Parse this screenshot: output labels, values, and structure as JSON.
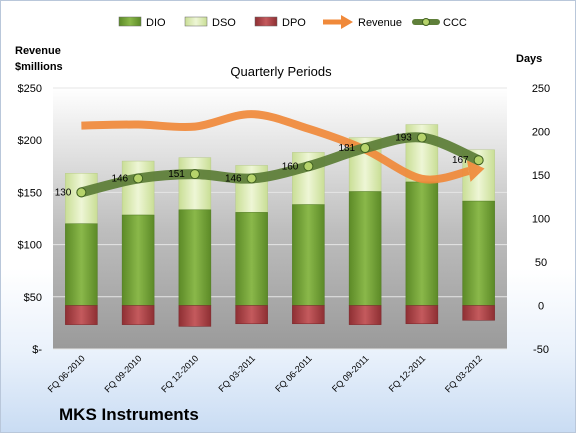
{
  "chart_data": {
    "type": "bar",
    "subtitle": "Quarterly Periods",
    "company": "MKS Instruments",
    "left_axis_title": [
      "Revenue",
      "$millions"
    ],
    "right_axis_title": "Days",
    "left_ticks": [
      "$-",
      "$50",
      "$100",
      "$150",
      "$200",
      "$250"
    ],
    "right_ticks": [
      "-50",
      "0",
      "50",
      "100",
      "150",
      "200",
      "250"
    ],
    "left_range": [
      0,
      250
    ],
    "right_range": [
      -50,
      250
    ],
    "categories": [
      "FQ 06-2010",
      "FQ 09-2010",
      "FQ 12-2010",
      "FQ 03-2011",
      "FQ 06-2011",
      "FQ 09-2011",
      "FQ 12-2011",
      "FQ 03-2012"
    ],
    "legend": [
      "DIO",
      "DSO",
      "DPO",
      "Revenue",
      "CCC"
    ],
    "series": [
      {
        "name": "DIO",
        "axis": "days",
        "values": [
          94,
          104,
          110,
          107,
          116,
          131,
          142,
          120
        ]
      },
      {
        "name": "DSO",
        "axis": "days",
        "values": [
          58,
          62,
          60,
          54,
          60,
          62,
          66,
          59
        ]
      },
      {
        "name": "DPO",
        "axis": "days",
        "values": [
          -22,
          -22,
          -24,
          -21,
          -21,
          -22,
          -21,
          -17
        ]
      },
      {
        "name": "Revenue",
        "axis": "revenue",
        "values": [
          214,
          215,
          213,
          225,
          211,
          191,
          163,
          172
        ]
      },
      {
        "name": "CCC",
        "axis": "days",
        "values": [
          130,
          146,
          151,
          146,
          160,
          181,
          193,
          167
        ]
      }
    ],
    "ccc_labels": [
      "130",
      "146",
      "151",
      "146",
      "160",
      "181",
      "193",
      "167"
    ],
    "grid": true,
    "legend_position": "top",
    "colors": {
      "DIO": "#77a33a",
      "DSO": "#dcebb3",
      "DPO": "#b04a4d",
      "Revenue": "#f0893a",
      "CCC": "#5f7f3a",
      "plot_background": "#aeaeae"
    }
  }
}
